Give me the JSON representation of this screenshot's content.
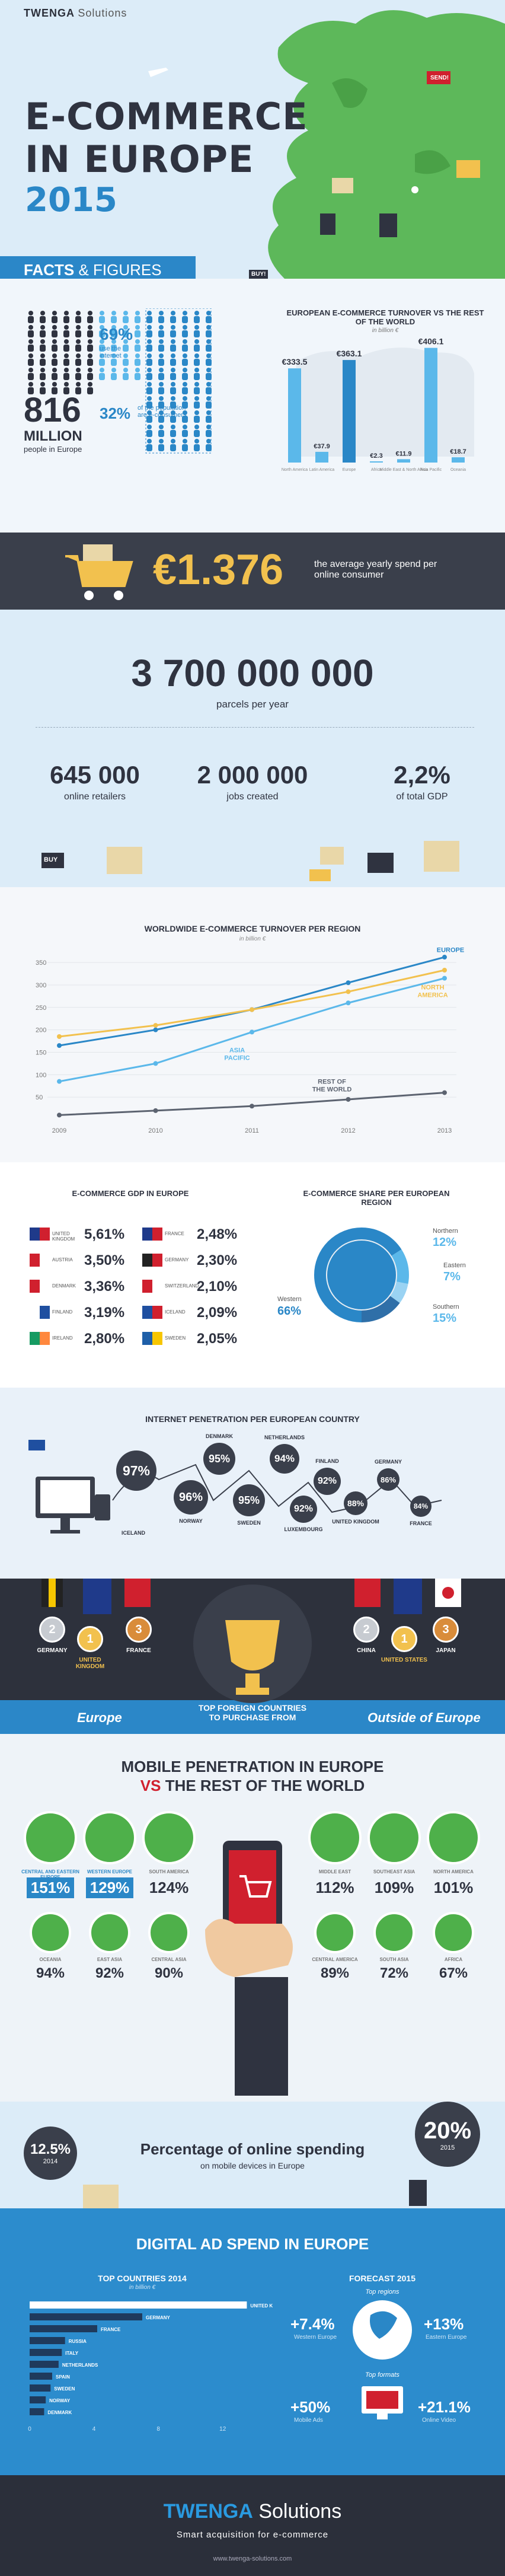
{
  "brand": {
    "name": "TWENGA",
    "sub": "Solutions"
  },
  "header": {
    "title_line1": "E-COMMERCE",
    "title_line2": "IN EUROPE",
    "year": "2015",
    "facts_a": "FACTS",
    "facts_b": "& FIGURES",
    "tag_send": "SEND!",
    "tag_buy": "BUY!"
  },
  "people": {
    "internet_pct": "69%",
    "internet_label": "use the internet",
    "ecom_pct": "32%",
    "ecom_label": "of the population are e-consumers",
    "million_num": "816",
    "million_word": "MILLION",
    "million_label": "people in Europe",
    "turnover_title": "EUROPEAN E-COMMERCE TURNOVER VS THE REST OF THE WORLD",
    "turnover_unit": "in billion €",
    "turnover_bars": [
      {
        "label": "North America",
        "value": "€333.5",
        "v": 333.5
      },
      {
        "label": "Latin America",
        "value": "€37.9",
        "v": 37.9
      },
      {
        "label": "Europe",
        "value": "€363.1",
        "v": 363.1
      },
      {
        "label": "Africa",
        "value": "€2.3",
        "v": 2.3
      },
      {
        "label": "Middle East & North Africa",
        "value": "€11.9",
        "v": 11.9
      },
      {
        "label": "Asia Pacific",
        "value": "€406.1",
        "v": 406.1
      },
      {
        "label": "Oceania",
        "value": "€18.7",
        "v": 18.7
      }
    ]
  },
  "spend": {
    "value": "€1.376",
    "label": "the average yearly spend per online consumer"
  },
  "parcels": {
    "big": "3 700 000 000",
    "big_label": "parcels per year",
    "stats": [
      {
        "value": "645 000",
        "label": "online retailers"
      },
      {
        "value": "2 000 000",
        "label": "jobs created"
      },
      {
        "value": "2,2%",
        "label": "of total GDP"
      }
    ],
    "buy": "BUY"
  },
  "linechart_title": "WORLDWIDE E-COMMERCE TURNOVER PER REGION",
  "linechart_unit": "in billion €",
  "chart_data": {
    "type": "line",
    "title": "WORLDWIDE E-COMMERCE TURNOVER PER REGION",
    "subtitle": "in billion €",
    "x": [
      "2009",
      "2010",
      "2011",
      "2012",
      "2013"
    ],
    "ylim": [
      0,
      370
    ],
    "yticks": [
      50,
      100,
      150,
      200,
      250,
      300,
      350
    ],
    "series": [
      {
        "name": "EUROPE",
        "color": "#2a87c7",
        "values": [
          165,
          200,
          245,
          305,
          362
        ]
      },
      {
        "name": "NORTH AMERICA",
        "color": "#f2c14e",
        "values": [
          185,
          210,
          245,
          285,
          333
        ]
      },
      {
        "name": "ASIA PACIFIC",
        "color": "#5bb8ea",
        "values": [
          85,
          125,
          195,
          260,
          315
        ]
      },
      {
        "name": "REST OF THE WORLD",
        "color": "#5c6370",
        "values": [
          10,
          20,
          30,
          45,
          60
        ]
      }
    ]
  },
  "gdp": {
    "title": "E-COMMERCE GDP IN EUROPE",
    "left": [
      {
        "name": "UNITED KINGDOM",
        "value": "5,61%",
        "c1": "#1f3a8a",
        "c2": "#d0202e"
      },
      {
        "name": "AUSTRIA",
        "value": "3,50%",
        "c1": "#d0202e",
        "c2": "#ffffff"
      },
      {
        "name": "DENMARK",
        "value": "3,36%",
        "c1": "#d0202e",
        "c2": "#ffffff"
      },
      {
        "name": "FINLAND",
        "value": "3,19%",
        "c1": "#ffffff",
        "c2": "#1f4fa0"
      },
      {
        "name": "IRELAND",
        "value": "2,80%",
        "c1": "#169b62",
        "c2": "#ff883e"
      }
    ],
    "right": [
      {
        "name": "FRANCE",
        "value": "2,48%",
        "c1": "#1f3a8a",
        "c2": "#d0202e"
      },
      {
        "name": "GERMANY",
        "value": "2,30%",
        "c1": "#222222",
        "c2": "#d0202e"
      },
      {
        "name": "SWITZERLAND",
        "value": "2,10%",
        "c1": "#d0202e",
        "c2": "#ffffff"
      },
      {
        "name": "ICELAND",
        "value": "2,09%",
        "c1": "#1f4fa0",
        "c2": "#d0202e"
      },
      {
        "name": "SWEDEN",
        "value": "2,05%",
        "c1": "#1f5fa8",
        "c2": "#f7c600"
      }
    ],
    "share_title": "E-COMMERCE SHARE PER EUROPEAN REGION",
    "share": [
      {
        "name": "Northern",
        "value": "12%"
      },
      {
        "name": "Eastern",
        "value": "7%"
      },
      {
        "name": "Southern",
        "value": "15%"
      },
      {
        "name": "Western",
        "value": "66%"
      }
    ]
  },
  "internet": {
    "title": "INTERNET PENETRATION PER EUROPEAN COUNTRY",
    "items": [
      {
        "name": "ICELAND",
        "value": "97%"
      },
      {
        "name": "NORWAY",
        "value": "96%"
      },
      {
        "name": "DENMARK",
        "value": "95%"
      },
      {
        "name": "SWEDEN",
        "value": "95%"
      },
      {
        "name": "NETHERLANDS",
        "value": "94%"
      },
      {
        "name": "FINLAND",
        "value": "92%"
      },
      {
        "name": "LUXEMBOURG",
        "value": "92%"
      },
      {
        "name": "UNITED KINGDOM",
        "value": "88%"
      },
      {
        "name": "GERMANY",
        "value": "86%"
      },
      {
        "name": "FRANCE",
        "value": "84%"
      }
    ]
  },
  "foreign": {
    "title": "TOP FOREIGN COUNTRIES TO PURCHASE FROM",
    "left_label": "Europe",
    "right_label": "Outside of Europe",
    "europe": [
      {
        "rank": "2",
        "name": "GERMANY"
      },
      {
        "rank": "1",
        "name": "UNITED KINGDOM"
      },
      {
        "rank": "3",
        "name": "FRANCE"
      }
    ],
    "outside": [
      {
        "rank": "2",
        "name": "CHINA"
      },
      {
        "rank": "1",
        "name": "UNITED STATES"
      },
      {
        "rank": "3",
        "name": "JAPAN"
      }
    ]
  },
  "mobile": {
    "title_a": "MOBILE PENETRATION IN EUROPE",
    "title_vs": "VS",
    "title_b": "THE REST OF THE WORLD",
    "top": [
      {
        "name": "CENTRAL AND EASTERN EUROPE",
        "value": "151%",
        "hl": true
      },
      {
        "name": "WESTERN EUROPE",
        "value": "129%",
        "hl": true
      },
      {
        "name": "SOUTH AMERICA",
        "value": "124%",
        "hl": false
      },
      {
        "name": "MIDDLE EAST",
        "value": "112%",
        "hl": false
      },
      {
        "name": "SOUTHEAST ASIA",
        "value": "109%",
        "hl": false
      },
      {
        "name": "NORTH AMERICA",
        "value": "101%",
        "hl": false
      }
    ],
    "bottom": [
      {
        "name": "OCEANIA",
        "value": "94%"
      },
      {
        "name": "EAST ASIA",
        "value": "92%"
      },
      {
        "name": "CENTRAL ASIA",
        "value": "90%"
      },
      {
        "name": "CENTRAL AMERICA",
        "value": "89%"
      },
      {
        "name": "SOUTH ASIA",
        "value": "72%"
      },
      {
        "name": "AFRICA",
        "value": "67%"
      }
    ]
  },
  "online": {
    "title": "Percentage of online spending",
    "sub": "on mobile devices in Europe",
    "left_value": "12.5%",
    "left_year": "2014",
    "right_value": "20%",
    "right_year": "2015"
  },
  "digital": {
    "title": "DIGITAL AD SPEND IN EUROPE",
    "top_title": "TOP COUNTRIES 2014",
    "top_unit": "in billion €",
    "bars": [
      {
        "name": "UNITED KINGDOM",
        "v": 13.5
      },
      {
        "name": "GERMANY",
        "v": 7.0
      },
      {
        "name": "FRANCE",
        "v": 4.2
      },
      {
        "name": "RUSSIA",
        "v": 2.2
      },
      {
        "name": "ITALY",
        "v": 2.0
      },
      {
        "name": "NETHERLANDS",
        "v": 1.8
      },
      {
        "name": "SPAIN",
        "v": 1.4
      },
      {
        "name": "SWEDEN",
        "v": 1.3
      },
      {
        "name": "NORWAY",
        "v": 1.0
      },
      {
        "name": "DENMARK",
        "v": 0.9
      }
    ],
    "axis": [
      "0",
      "4",
      "8",
      "12"
    ],
    "forecast_title": "FORECAST 2015",
    "top_regions": "Top regions",
    "top_formats": "Top formats",
    "f1": {
      "value": "+7.4%",
      "label": "Western Europe"
    },
    "f2": {
      "value": "+13%",
      "label": "Eastern Europe"
    },
    "f3": {
      "value": "+50%",
      "label": "Mobile Ads"
    },
    "f4": {
      "value": "+21.1%",
      "label": "Online Video"
    }
  },
  "footer": {
    "brand": "TWENGA",
    "sub": "Solutions",
    "tagline": "Smart acquisition for e-commerce",
    "url": "www.twenga-solutions.com"
  }
}
